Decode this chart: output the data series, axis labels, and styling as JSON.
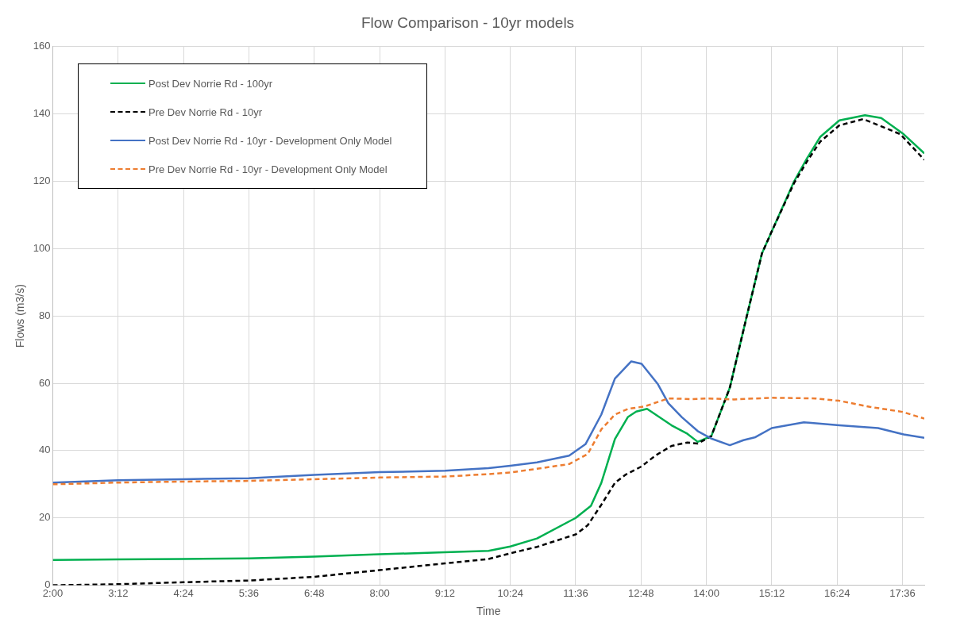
{
  "chart_data": {
    "type": "line",
    "title": "Flow Comparison - 10yr models",
    "xlabel": "Time",
    "ylabel": "Flows (m3/s)",
    "xlim": [
      2,
      18
    ],
    "ylim": [
      0,
      160
    ],
    "yticks": [
      0,
      20,
      40,
      60,
      80,
      100,
      120,
      140,
      160
    ],
    "xticks": [
      {
        "value": 2,
        "label": "2:00"
      },
      {
        "value": 3.2,
        "label": "3:12"
      },
      {
        "value": 4.4,
        "label": "4:24"
      },
      {
        "value": 5.6,
        "label": "5:36"
      },
      {
        "value": 6.8,
        "label": "6:48"
      },
      {
        "value": 8,
        "label": "8:00"
      },
      {
        "value": 9.2,
        "label": "9:12"
      },
      {
        "value": 10.4,
        "label": "10:24"
      },
      {
        "value": 11.6,
        "label": "11:36"
      },
      {
        "value": 12.8,
        "label": "12:48"
      },
      {
        "value": 14,
        "label": "14:00"
      },
      {
        "value": 15.2,
        "label": "15:12"
      },
      {
        "value": 16.4,
        "label": "16:24"
      },
      {
        "value": 17.6,
        "label": "17:36"
      }
    ],
    "grid": true,
    "legend": "top left",
    "marker": "none",
    "series": [
      {
        "name": "Post Dev Norrie Rd - 100yr",
        "color": "#00b050",
        "line_style": "solid",
        "x": [
          2,
          3.2,
          4.4,
          5.6,
          6.8,
          8,
          9.2,
          10,
          10.4,
          10.89,
          11.6,
          11.88,
          12.07,
          12.32,
          12.56,
          12.71,
          12.91,
          13.36,
          13.65,
          13.84,
          14.09,
          14.43,
          14.73,
          15.02,
          15.21,
          15.61,
          15.85,
          16.09,
          16.44,
          16.91,
          17.21,
          17.62,
          18
        ],
        "values": [
          7.5,
          7.7,
          7.8,
          8,
          8.5,
          9.2,
          9.8,
          10.2,
          11.5,
          13.9,
          20,
          23.6,
          30.4,
          43.4,
          50,
          51.6,
          52.4,
          47.5,
          45,
          42.6,
          44.3,
          58.7,
          79.2,
          98.6,
          105.5,
          120,
          126.9,
          133.2,
          138.1,
          139.6,
          138.8,
          134,
          128.3
        ]
      },
      {
        "name": "Pre Dev Norrie Rd - 10yr",
        "color": "#000000",
        "line_style": "dashed",
        "x": [
          2,
          3.2,
          4.4,
          5.6,
          6.8,
          8,
          9.2,
          10,
          10.4,
          10.89,
          11.6,
          11.82,
          12.07,
          12.32,
          12.52,
          12.81,
          13.06,
          13.36,
          13.65,
          13.84,
          14.09,
          14.43,
          14.73,
          15.02,
          15.21,
          15.61,
          15.85,
          16.09,
          16.44,
          16.88,
          17.56,
          18
        ],
        "values": [
          0,
          0.3,
          0.9,
          1.4,
          2.5,
          4.5,
          6.5,
          7.8,
          9.5,
          11.4,
          15.1,
          17.8,
          23.9,
          30.4,
          32.9,
          35.3,
          38.5,
          41.4,
          42.4,
          42.1,
          44.3,
          58.7,
          79.2,
          98.6,
          105.5,
          119.5,
          126,
          131.8,
          136.6,
          138.5,
          134,
          126.4
        ]
      },
      {
        "name": "Post Dev Norrie Rd - 10yr - Development Only Model",
        "color": "#4472c4",
        "line_style": "solid",
        "x": [
          2,
          3.2,
          4.4,
          5.6,
          6.8,
          8,
          9.2,
          10,
          10.4,
          10.89,
          11.48,
          11.78,
          12.07,
          12.32,
          12.62,
          12.81,
          13.11,
          13.3,
          13.55,
          13.84,
          14.1,
          14.43,
          14.68,
          14.9,
          15.2,
          15.79,
          16.44,
          17.15,
          17.62,
          18
        ],
        "values": [
          30.5,
          31.2,
          31.5,
          31.8,
          32.8,
          33.6,
          34,
          34.8,
          35.5,
          36.5,
          38.5,
          41.9,
          50.7,
          61.4,
          66.5,
          65.8,
          59.7,
          54.1,
          49.9,
          45.8,
          43.5,
          41.6,
          43.1,
          44,
          46.7,
          48.4,
          47.5,
          46.7,
          44.8,
          43.8
        ]
      },
      {
        "name": "Pre Dev Norrie Rd - 10yr - Development Only Model",
        "color": "#ed7d31",
        "line_style": "dashed",
        "x": [
          2,
          3.2,
          4.4,
          5.6,
          6.8,
          8,
          9.2,
          10,
          10.4,
          10.89,
          11.48,
          11.82,
          12.07,
          12.32,
          12.56,
          12.86,
          13.3,
          13.74,
          14.04,
          14.5,
          15.2,
          16,
          16.44,
          17,
          17.6,
          18
        ],
        "values": [
          30,
          30.5,
          30.8,
          31,
          31.5,
          32,
          32.3,
          33,
          33.5,
          34.6,
          36,
          39,
          46.3,
          50.7,
          52.4,
          53.1,
          55.5,
          55.3,
          55.5,
          55.2,
          55.7,
          55.5,
          54.8,
          53,
          51.5,
          49.5
        ]
      }
    ]
  }
}
